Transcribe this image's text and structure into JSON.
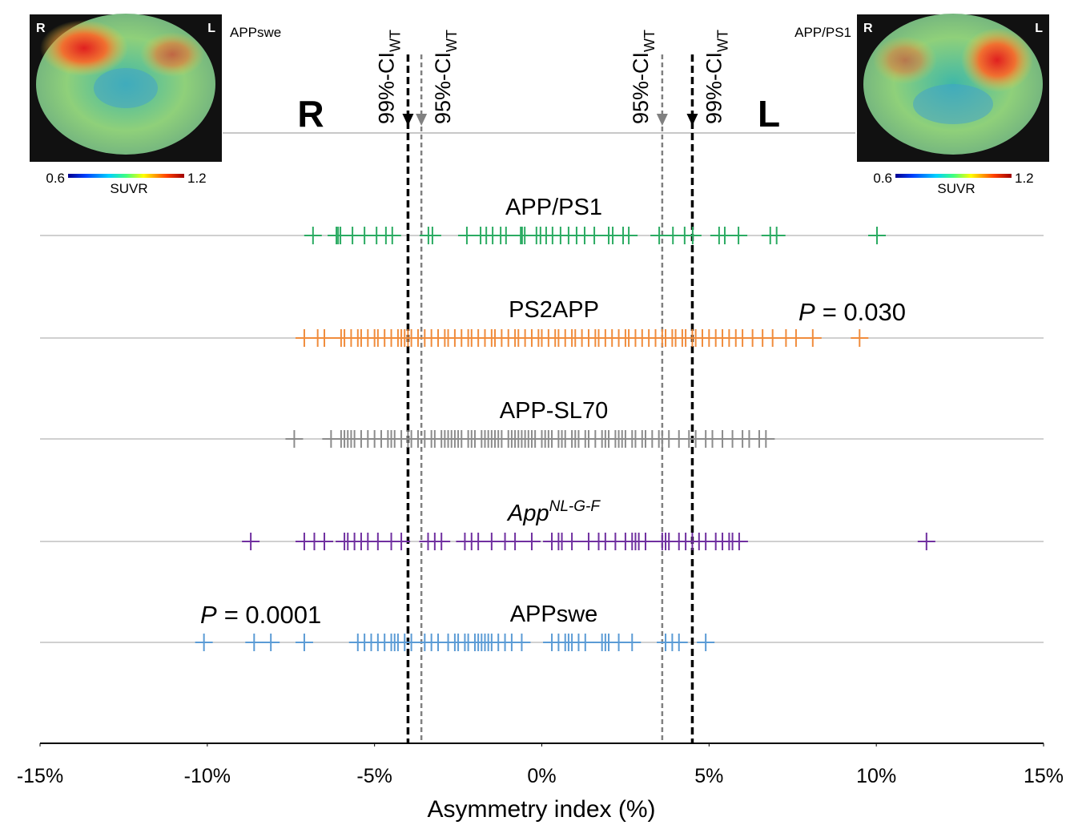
{
  "chart_data": {
    "type": "strip",
    "x_label": "Asymmetry index (%)",
    "xlim": [
      -15,
      15
    ],
    "xticks": [
      {
        "value": -15,
        "label": "-15%"
      },
      {
        "value": -10,
        "label": "-10%"
      },
      {
        "value": -5,
        "label": "-5%"
      },
      {
        "value": 0,
        "label": "0%"
      },
      {
        "value": 5,
        "label": "5%"
      },
      {
        "value": 10,
        "label": "10%"
      },
      {
        "value": 15,
        "label": "15%"
      }
    ],
    "side_labels": [
      "R",
      "L"
    ],
    "reference_lines": [
      {
        "label": "99%-CI",
        "subscript": "WT",
        "value": -4.0,
        "color": "#000000"
      },
      {
        "label": "95%-CI",
        "subscript": "WT",
        "value": -3.6,
        "color": "#808080"
      },
      {
        "label": "95%-CI",
        "subscript": "WT",
        "value": 3.6,
        "color": "#808080"
      },
      {
        "label": "99%-CI",
        "subscript": "WT",
        "value": 4.5,
        "color": "#000000"
      }
    ],
    "series": [
      {
        "name": "APP/PS1",
        "color": "#2bab62",
        "values": [
          -6.84,
          -6.14,
          -6.09,
          -6.02,
          -5.66,
          -5.3,
          -4.94,
          -4.66,
          -4.47,
          -3.39,
          -3.27,
          -2.24,
          -1.83,
          -1.66,
          -1.47,
          -1.23,
          -1.07,
          -0.63,
          -0.59,
          -0.51,
          -0.16,
          -0.04,
          0.13,
          0.32,
          0.56,
          0.8,
          1.04,
          1.28,
          1.57,
          2.0,
          2.12,
          2.43,
          2.6,
          3.51,
          3.92,
          4.27,
          4.51,
          5.3,
          5.47,
          5.88,
          6.83,
          7.02,
          10.02
        ]
      },
      {
        "name": "PS2APP",
        "color": "#f08c3c",
        "values": [
          -7.1,
          -6.7,
          -6.5,
          -6.0,
          -5.9,
          -5.7,
          -5.5,
          -5.4,
          -5.2,
          -5.0,
          -4.9,
          -4.7,
          -4.5,
          -4.3,
          -4.2,
          -4.1,
          -4.0,
          -3.9,
          -3.7,
          -3.5,
          -3.3,
          -3.1,
          -2.9,
          -2.8,
          -2.6,
          -2.4,
          -2.2,
          -2.1,
          -1.9,
          -1.7,
          -1.5,
          -1.4,
          -1.2,
          -1.0,
          -0.8,
          -0.7,
          -0.5,
          -0.3,
          -0.1,
          0.0,
          0.2,
          0.4,
          0.5,
          0.7,
          0.9,
          1.0,
          1.2,
          1.4,
          1.6,
          1.7,
          1.9,
          2.1,
          2.3,
          2.5,
          2.6,
          2.8,
          3.0,
          3.2,
          3.4,
          3.6,
          3.7,
          3.9,
          4.0,
          4.2,
          4.3,
          4.5,
          4.6,
          4.8,
          5.0,
          5.2,
          5.4,
          5.6,
          5.8,
          6.0,
          6.3,
          6.6,
          6.9,
          7.3,
          7.6,
          8.1,
          9.5
        ]
      },
      {
        "name": "APP-SL70",
        "color": "#8c8c8c",
        "values": [
          -7.4,
          -6.3,
          -6.0,
          -5.9,
          -5.8,
          -5.7,
          -5.6,
          -5.4,
          -5.2,
          -5.0,
          -4.8,
          -4.6,
          -4.5,
          -4.4,
          -4.2,
          -4.0,
          -3.9,
          -3.7,
          -3.5,
          -3.3,
          -3.2,
          -3.0,
          -2.9,
          -2.8,
          -2.7,
          -2.6,
          -2.5,
          -2.4,
          -2.2,
          -2.1,
          -2.0,
          -1.8,
          -1.7,
          -1.6,
          -1.5,
          -1.4,
          -1.3,
          -1.2,
          -1.0,
          -0.9,
          -0.8,
          -0.7,
          -0.6,
          -0.5,
          -0.4,
          -0.3,
          -0.2,
          0.0,
          0.1,
          0.2,
          0.3,
          0.5,
          0.6,
          0.7,
          0.9,
          1.0,
          1.1,
          1.3,
          1.4,
          1.6,
          1.8,
          1.9,
          2.0,
          2.2,
          2.3,
          2.4,
          2.5,
          2.7,
          2.8,
          3.0,
          3.1,
          3.3,
          3.5,
          3.6,
          3.8,
          4.1,
          4.4,
          4.6,
          4.9,
          5.1,
          5.4,
          5.7,
          6.0,
          6.2,
          6.5,
          6.7
        ]
      },
      {
        "name": "App",
        "name_superscript": "NL-G-F",
        "color": "#7030a0",
        "values": [
          -8.7,
          -7.1,
          -6.8,
          -6.5,
          -5.9,
          -5.8,
          -5.6,
          -5.4,
          -5.2,
          -4.9,
          -4.5,
          -4.2,
          -3.4,
          -3.2,
          -3.0,
          -2.3,
          -2.1,
          -1.9,
          -1.5,
          -1.1,
          -0.8,
          -0.3,
          0.3,
          0.5,
          0.6,
          0.9,
          1.4,
          1.7,
          1.9,
          2.2,
          2.5,
          2.7,
          2.8,
          2.9,
          3.1,
          3.6,
          3.7,
          3.8,
          4.1,
          4.3,
          4.5,
          4.7,
          4.9,
          5.2,
          5.4,
          5.6,
          5.7,
          5.9,
          11.5
        ]
      },
      {
        "name": "APPswe",
        "color": "#5b9bd5",
        "values": [
          -10.1,
          -8.6,
          -8.1,
          -7.1,
          -5.5,
          -5.3,
          -5.1,
          -4.9,
          -4.7,
          -4.5,
          -4.4,
          -4.3,
          -4.1,
          -3.9,
          -3.5,
          -3.3,
          -3.1,
          -2.8,
          -2.6,
          -2.5,
          -2.3,
          -2.2,
          -2.0,
          -1.9,
          -1.8,
          -1.7,
          -1.6,
          -1.5,
          -1.3,
          -1.1,
          -0.9,
          -0.6,
          0.3,
          0.5,
          0.7,
          0.8,
          0.9,
          1.1,
          1.3,
          1.8,
          1.9,
          2.0,
          2.3,
          2.7,
          3.7,
          3.9,
          4.1,
          4.9
        ]
      }
    ],
    "annotations": [
      {
        "italic": "P",
        "text": "= 0.030"
      },
      {
        "italic": "P",
        "text": "= 0.0001"
      }
    ],
    "images": [
      {
        "caption": "APPswe",
        "left": "R",
        "right": "L",
        "colorbar_min": 0.6,
        "colorbar_max": 1.2,
        "colorbar_label": "SUVR"
      },
      {
        "caption": "APP/PS1",
        "left": "R",
        "right": "L",
        "colorbar_min": 0.6,
        "colorbar_max": 1.2,
        "colorbar_label": "SUVR"
      }
    ]
  }
}
